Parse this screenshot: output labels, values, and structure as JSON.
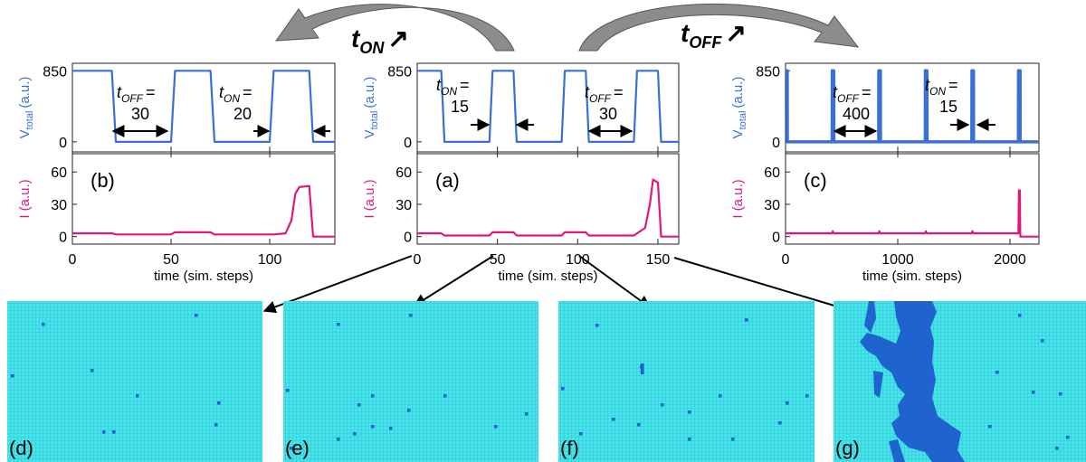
{
  "header": {
    "left": {
      "t": "t",
      "sub": "ON",
      "arrow": "↗"
    },
    "right": {
      "t": "t",
      "sub": "OFF",
      "arrow": "↗"
    }
  },
  "chart_data": [
    {
      "type": "line",
      "label": "(b)",
      "xlabel": "time (sim. steps)",
      "xlim": [
        0,
        133
      ],
      "xticks": [
        0,
        50,
        100
      ],
      "subplots": [
        {
          "ylabel": "V",
          "ylabel_sub": "total",
          "ylabel_unit": "(a.u.)",
          "color": "#3a6fd8",
          "ylim": [
            -120,
            940
          ],
          "yticks": [
            0,
            850
          ],
          "x": [
            0,
            20,
            22,
            50,
            52,
            70,
            72,
            100,
            102,
            120,
            122,
            133
          ],
          "values": [
            850,
            850,
            0,
            0,
            850,
            850,
            0,
            0,
            850,
            850,
            0,
            0
          ]
        },
        {
          "ylabel": "I (a.u.)",
          "color": "#e0187a",
          "ylim": [
            -7,
            77
          ],
          "yticks": [
            0,
            30,
            60
          ],
          "x": [
            0,
            20,
            22,
            50,
            52,
            70,
            72,
            100,
            102,
            108,
            111,
            113,
            115,
            120,
            122,
            133
          ],
          "values": [
            3,
            3,
            2,
            2,
            4,
            4,
            2,
            2,
            2,
            3,
            15,
            40,
            46,
            47,
            0,
            0
          ]
        }
      ],
      "annotations": [
        {
          "t": "t",
          "sub": "OFF",
          "eq": "=",
          "num": "30"
        },
        {
          "t": "t",
          "sub": "ON",
          "eq": "=",
          "num": "20"
        }
      ]
    },
    {
      "type": "line",
      "label": "(a)",
      "xlabel": "time (sim. steps)",
      "xlim": [
        0,
        163
      ],
      "xticks": [
        0,
        50,
        100,
        150
      ],
      "subplots": [
        {
          "ylabel": "V",
          "ylabel_sub": "total",
          "ylabel_unit": "(a.u.)",
          "color": "#3a6fd8",
          "ylim": [
            -120,
            940
          ],
          "yticks": [
            0,
            850
          ],
          "x": [
            0,
            15,
            17,
            45,
            47,
            60,
            62,
            90,
            92,
            105,
            107,
            135,
            137,
            150,
            152,
            163
          ],
          "values": [
            850,
            850,
            0,
            0,
            850,
            850,
            0,
            0,
            850,
            850,
            0,
            0,
            850,
            850,
            0,
            0
          ]
        },
        {
          "ylabel": "I (a.u.)",
          "color": "#e0187a",
          "ylim": [
            -7,
            77
          ],
          "yticks": [
            0,
            30,
            60
          ],
          "x": [
            0,
            15,
            17,
            45,
            47,
            60,
            62,
            90,
            92,
            105,
            107,
            135,
            137,
            142,
            145,
            147,
            150,
            152,
            163
          ],
          "values": [
            3,
            3,
            1,
            1,
            4,
            4,
            1,
            1,
            4,
            4,
            1,
            1,
            3,
            8,
            30,
            53,
            50,
            0,
            0
          ]
        }
      ],
      "annotations": [
        {
          "t": "t",
          "sub": "ON",
          "eq": "=",
          "num": "15"
        },
        {
          "t": "t",
          "sub": "OFF",
          "eq": "=",
          "num": "30"
        }
      ]
    },
    {
      "type": "line",
      "label": "(c)",
      "xlabel": "time (sim. steps)",
      "xlim": [
        0,
        2258
      ],
      "xticks": [
        0,
        1000,
        2000
      ],
      "subplots": [
        {
          "ylabel": "V",
          "ylabel_sub": "total",
          "ylabel_unit": "(a.u.)",
          "color": "#3a6fd8",
          "ylim": [
            -120,
            940
          ],
          "yticks": [
            0,
            850
          ],
          "x": [
            0,
            15,
            16,
            415,
            416,
            430,
            431,
            830,
            831,
            845,
            846,
            1245,
            1246,
            1260,
            1261,
            1660,
            1661,
            1675,
            1676,
            2075,
            2076,
            2090,
            2091,
            2258
          ],
          "values": [
            850,
            850,
            0,
            0,
            850,
            850,
            0,
            0,
            850,
            850,
            0,
            0,
            850,
            850,
            0,
            0,
            850,
            850,
            0,
            0,
            850,
            850,
            0,
            0
          ]
        },
        {
          "ylabel": "I (a.u.)",
          "color": "#e0187a",
          "ylim": [
            -7,
            77
          ],
          "yticks": [
            0,
            30,
            60
          ],
          "x": [
            0,
            415,
            420,
            430,
            830,
            835,
            845,
            1245,
            1250,
            1260,
            1660,
            1665,
            1675,
            2075,
            2080,
            2088,
            2092,
            2258
          ],
          "values": [
            3,
            3,
            5,
            3,
            3,
            5,
            3,
            3,
            5,
            3,
            3,
            5,
            3,
            3,
            43,
            43,
            0,
            0
          ]
        }
      ],
      "annotations": [
        {
          "t": "t",
          "sub": "OFF",
          "eq": "=",
          "num": "400"
        },
        {
          "t": "t",
          "sub": "ON",
          "eq": "=",
          "num": "15"
        }
      ]
    }
  ],
  "images": [
    {
      "label": "(d)"
    },
    {
      "label": "(e)"
    },
    {
      "label": "(f)"
    },
    {
      "label": "(g)"
    }
  ]
}
